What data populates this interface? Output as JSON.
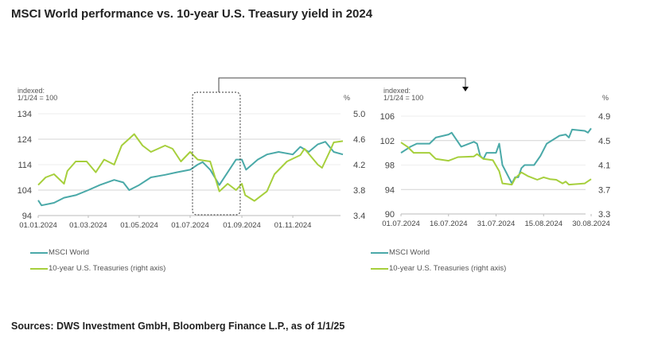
{
  "title": "MSCI World performance vs. 10-year U.S. Treasury yield in 2024",
  "sources": "Sources: DWS Investment GmbH, Bloomberg Finance L.P., as of 1/1/25",
  "colors": {
    "msci": "#4aa9a8",
    "treasury": "#a6cf3c",
    "grid": "#dddddd",
    "frame": "#555555"
  },
  "chart_data": [
    {
      "type": "line",
      "ylabel": "indexed:\n1/1/24 = 100",
      "ylabel_lines": [
        "indexed:",
        "1/1/24 = 100"
      ],
      "y2label": "%",
      "ylim": [
        94,
        134
      ],
      "yticks": [
        "134",
        "124",
        "114",
        "104",
        "94"
      ],
      "y2lim": [
        3.4,
        5.0
      ],
      "y2ticks": [
        "5.0",
        "4.6",
        "4.2",
        "3.8",
        "3.4"
      ],
      "xlim": [
        "2024-01-01",
        "2024-12-31"
      ],
      "xticks": [
        {
          "date": "2024-01-01",
          "label": "01.01.2024"
        },
        {
          "date": "2024-03-01",
          "label": "01.03.2024"
        },
        {
          "date": "2024-05-01",
          "label": "01.05.2024"
        },
        {
          "date": "2024-07-01",
          "label": "01.07.2024"
        },
        {
          "date": "2024-09-01",
          "label": "01.09.2024"
        },
        {
          "date": "2024-11-01",
          "label": "01.11.2024"
        }
      ],
      "grid": true,
      "legend": "bottom-left",
      "highlight_range": [
        "2024-07-01",
        "2024-08-30"
      ],
      "series": [
        {
          "name": "MSCI World",
          "axis": "left",
          "x": [
            "2024-01-01",
            "2024-01-05",
            "2024-01-20",
            "2024-02-01",
            "2024-02-15",
            "2024-03-01",
            "2024-03-15",
            "2024-04-01",
            "2024-04-12",
            "2024-04-19",
            "2024-05-01",
            "2024-05-15",
            "2024-06-01",
            "2024-06-15",
            "2024-07-01",
            "2024-07-10",
            "2024-07-16",
            "2024-07-25",
            "2024-08-05",
            "2024-08-15",
            "2024-08-25",
            "2024-09-01",
            "2024-09-06",
            "2024-09-20",
            "2024-10-01",
            "2024-10-15",
            "2024-11-01",
            "2024-11-10",
            "2024-11-20",
            "2024-12-01",
            "2024-12-10",
            "2024-12-20",
            "2024-12-31"
          ],
          "y": [
            100,
            98,
            99,
            101,
            102,
            104,
            106,
            108,
            107,
            104,
            106,
            109,
            110,
            111,
            112,
            114,
            115,
            112,
            106,
            111,
            116,
            116,
            112,
            116,
            118,
            119,
            118,
            121,
            119,
            122,
            123,
            119,
            118
          ]
        },
        {
          "name": "10-year U.S. Treasuries (right axis)",
          "axis": "right",
          "x": [
            "2024-01-01",
            "2024-01-10",
            "2024-01-20",
            "2024-02-01",
            "2024-02-05",
            "2024-02-15",
            "2024-02-28",
            "2024-03-10",
            "2024-03-20",
            "2024-04-01",
            "2024-04-10",
            "2024-04-25",
            "2024-05-05",
            "2024-05-15",
            "2024-06-01",
            "2024-06-10",
            "2024-06-20",
            "2024-07-01",
            "2024-07-10",
            "2024-07-25",
            "2024-08-05",
            "2024-08-15",
            "2024-08-25",
            "2024-09-01",
            "2024-09-05",
            "2024-09-16",
            "2024-10-01",
            "2024-10-10",
            "2024-10-25",
            "2024-11-10",
            "2024-11-15",
            "2024-12-01",
            "2024-12-06",
            "2024-12-15",
            "2024-12-20",
            "2024-12-31"
          ],
          "y": [
            3.88,
            4.0,
            4.05,
            3.9,
            4.1,
            4.25,
            4.25,
            4.08,
            4.28,
            4.2,
            4.5,
            4.68,
            4.5,
            4.4,
            4.5,
            4.45,
            4.25,
            4.4,
            4.28,
            4.25,
            3.78,
            3.9,
            3.8,
            3.9,
            3.72,
            3.63,
            3.78,
            4.05,
            4.25,
            4.35,
            4.45,
            4.2,
            4.15,
            4.4,
            4.55,
            4.57
          ]
        }
      ]
    },
    {
      "type": "line",
      "ylabel_lines": [
        "indexed:",
        "1/1/24 = 100"
      ],
      "y2label": "%",
      "ylim": [
        90,
        106
      ],
      "yticks": [
        "106",
        "102",
        "98",
        "94",
        "90"
      ],
      "y2lim": [
        3.3,
        4.9
      ],
      "y2ticks": [
        "4.9",
        "4.5",
        "4.1",
        "3.7",
        "3.3"
      ],
      "xlim": [
        "2024-07-01",
        "2024-08-30"
      ],
      "xticks": [
        {
          "date": "2024-07-01",
          "label": "01.07.2024"
        },
        {
          "date": "2024-07-16",
          "label": "16.07.2024"
        },
        {
          "date": "2024-07-31",
          "label": "31.07.2024"
        },
        {
          "date": "2024-08-15",
          "label": "15.08.2024"
        },
        {
          "date": "2024-08-30",
          "label": "30.08.2024"
        }
      ],
      "grid": true,
      "legend": "bottom-left",
      "series": [
        {
          "name": "MSCI World",
          "axis": "left",
          "x": [
            "2024-07-01",
            "2024-07-04",
            "2024-07-06",
            "2024-07-10",
            "2024-07-12",
            "2024-07-16",
            "2024-07-17",
            "2024-07-20",
            "2024-07-24",
            "2024-07-25",
            "2024-07-26",
            "2024-07-27",
            "2024-07-28",
            "2024-07-31",
            "2024-08-01",
            "2024-08-02",
            "2024-08-05",
            "2024-08-06",
            "2024-08-07",
            "2024-08-08",
            "2024-08-09",
            "2024-08-12",
            "2024-08-14",
            "2024-08-16",
            "2024-08-20",
            "2024-08-22",
            "2024-08-23",
            "2024-08-24",
            "2024-08-28",
            "2024-08-29",
            "2024-08-30"
          ],
          "y": [
            100,
            101,
            101.5,
            101.5,
            102.5,
            103,
            103.3,
            101,
            101.8,
            101.5,
            99.5,
            99,
            100,
            100,
            101.5,
            98,
            95,
            96,
            96,
            97.5,
            98,
            98,
            99.5,
            101.5,
            102.8,
            103,
            102.5,
            103.8,
            103.6,
            103.3,
            104
          ]
        },
        {
          "name": "10-year U.S. Treasuries (right axis)",
          "axis": "right",
          "x": [
            "2024-07-01",
            "2024-07-03",
            "2024-07-05",
            "2024-07-10",
            "2024-07-11",
            "2024-07-12",
            "2024-07-16",
            "2024-07-19",
            "2024-07-24",
            "2024-07-25",
            "2024-07-27",
            "2024-07-30",
            "2024-08-01",
            "2024-08-02",
            "2024-08-05",
            "2024-08-06",
            "2024-08-08",
            "2024-08-10",
            "2024-08-13",
            "2024-08-15",
            "2024-08-17",
            "2024-08-19",
            "2024-08-21",
            "2024-08-22",
            "2024-08-23",
            "2024-08-28",
            "2024-08-30"
          ],
          "y": [
            4.47,
            4.4,
            4.3,
            4.3,
            4.25,
            4.2,
            4.17,
            4.23,
            4.24,
            4.28,
            4.2,
            4.18,
            4.0,
            3.8,
            3.78,
            3.88,
            3.98,
            3.92,
            3.86,
            3.9,
            3.87,
            3.86,
            3.8,
            3.83,
            3.78,
            3.8,
            3.87
          ]
        }
      ]
    }
  ],
  "legend": {
    "msci": "MSCI World",
    "treasury": "10-year U.S. Treasuries (right axis)"
  }
}
